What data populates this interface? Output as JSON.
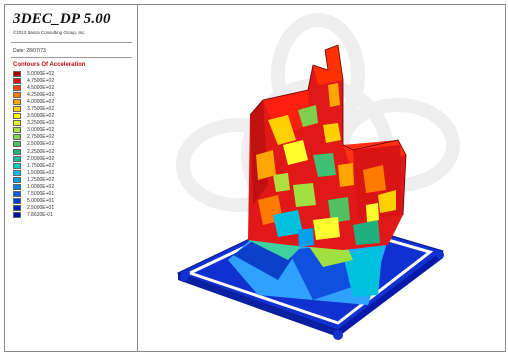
{
  "app": {
    "title": "3DEC_DP 5.00",
    "copyright": "©2013 Itasca Consulting Group, Inc.",
    "date": "Date: 28/07/73"
  },
  "legend": {
    "title": "Contours Of Acceleration",
    "items": [
      {
        "label": "5.0000E+02",
        "color": "#b00000"
      },
      {
        "label": "4.7500E+02",
        "color": "#e01010"
      },
      {
        "label": "4.5000E+02",
        "color": "#ff4500"
      },
      {
        "label": "4.2500E+02",
        "color": "#ff7a00"
      },
      {
        "label": "4.0000E+02",
        "color": "#ffa500"
      },
      {
        "label": "3.7500E+02",
        "color": "#ffd000"
      },
      {
        "label": "3.5000E+02",
        "color": "#ffff00"
      },
      {
        "label": "3.2500E+02",
        "color": "#e0f020"
      },
      {
        "label": "3.0000E+02",
        "color": "#b0e040"
      },
      {
        "label": "2.7500E+02",
        "color": "#80d050"
      },
      {
        "label": "2.5000E+02",
        "color": "#50c060"
      },
      {
        "label": "2.2500E+02",
        "color": "#20b080"
      },
      {
        "label": "2.0000E+02",
        "color": "#10c0a0"
      },
      {
        "label": "1.7500E+02",
        "color": "#00d0c0"
      },
      {
        "label": "1.5000E+02",
        "color": "#00c0e0"
      },
      {
        "label": "1.2500E+02",
        "color": "#00a0f0"
      },
      {
        "label": "1.0000E+02",
        "color": "#0080ff"
      },
      {
        "label": "7.5000E+01",
        "color": "#0060e0"
      },
      {
        "label": "5.0000E+01",
        "color": "#0040d0"
      },
      {
        "label": "2.5000E+01",
        "color": "#0020c0"
      },
      {
        "label": "7.8620E-01",
        "color": "#0010a0"
      }
    ]
  }
}
